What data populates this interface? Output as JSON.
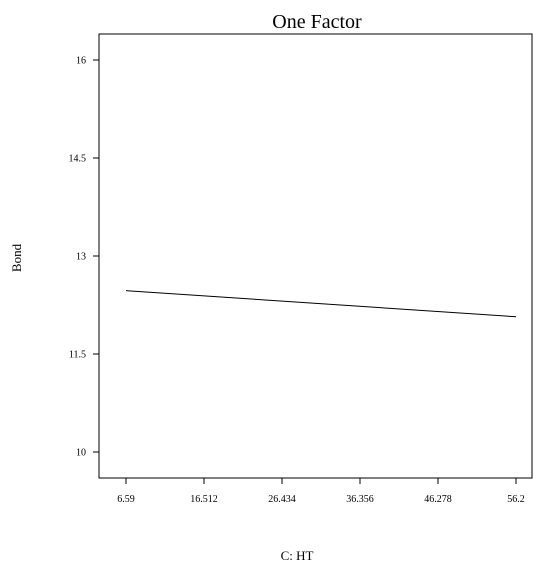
{
  "chart_data": {
    "type": "line",
    "title": "One Factor",
    "xlabel": "C: HT",
    "ylabel": "Bond",
    "xlim": [
      6.59,
      56.2
    ],
    "ylim": [
      9.8,
      16.3
    ],
    "x_ticks": [
      6.59,
      16.512,
      26.434,
      36.356,
      46.278,
      56.2
    ],
    "x_tick_labels": [
      "6.59",
      "16.512",
      "26.434",
      "36.356",
      "46.278",
      "56.2"
    ],
    "y_ticks": [
      10,
      11.5,
      13,
      14.5,
      16
    ],
    "y_tick_labels": [
      "10",
      "11.5",
      "13",
      "14.5",
      "16"
    ],
    "grid": false,
    "series": [
      {
        "x": [
          6.59,
          56.2
        ],
        "y": [
          12.47,
          12.07
        ]
      }
    ]
  }
}
